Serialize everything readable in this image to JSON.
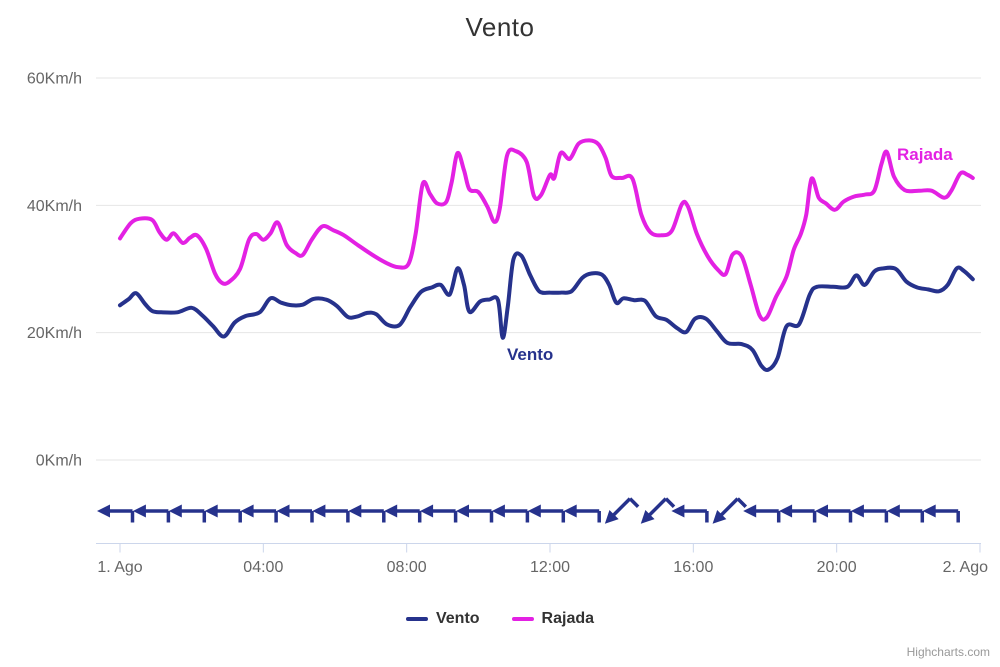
{
  "title": "Vento",
  "credit": "Highcharts.com",
  "series_labels": {
    "vento": "Vento",
    "rajada": "Rajada"
  },
  "legend": {
    "items": [
      {
        "label": "Vento",
        "color": "#26328c"
      },
      {
        "label": "Rajada",
        "color": "#e321e3"
      }
    ]
  },
  "colors": {
    "vento": "#26328c",
    "rajada": "#e321e3",
    "grid": "#e6e6e6",
    "axis_line": "#ccd6eb",
    "tick": "#ccd6eb",
    "axis_text": "#666666",
    "title_text": "#333333",
    "legend_text": "#333333",
    "credit_text": "#999999",
    "arrow": "#26328c"
  },
  "chart_data": {
    "type": "line",
    "title": "Vento",
    "subtitle": "",
    "x_unit": "hours since 1. Ago 00:00",
    "x_range_hours": [
      0,
      24
    ],
    "grid": "horizontal",
    "legend_position": "bottom-center",
    "x_ticks": [
      {
        "hour": 0,
        "label": "1. Ago"
      },
      {
        "hour": 4,
        "label": "04:00"
      },
      {
        "hour": 8,
        "label": "08:00"
      },
      {
        "hour": 12,
        "label": "12:00"
      },
      {
        "hour": 16,
        "label": "16:00"
      },
      {
        "hour": 20,
        "label": "20:00"
      },
      {
        "hour": 24,
        "label": "2. Ago"
      }
    ],
    "y_ticks": [
      {
        "value": 0,
        "label": "0Km/h"
      },
      {
        "value": 20,
        "label": "20Km/h"
      },
      {
        "value": 40,
        "label": "40Km/h"
      },
      {
        "value": 60,
        "label": "60Km/h"
      }
    ],
    "ylim": [
      0,
      60
    ],
    "y_unit": "Km/h",
    "series": [
      {
        "name": "Vento",
        "color": "#26328c",
        "points": [
          [
            0,
            24.3
          ],
          [
            0.25,
            25.3
          ],
          [
            0.45,
            26.2
          ],
          [
            0.7,
            24.5
          ],
          [
            0.9,
            23.4
          ],
          [
            1.15,
            23.2
          ],
          [
            1.6,
            23.2
          ],
          [
            2,
            23.9
          ],
          [
            2.3,
            22.7
          ],
          [
            2.6,
            21
          ],
          [
            2.9,
            19.4
          ],
          [
            3.2,
            21.6
          ],
          [
            3.5,
            22.6
          ],
          [
            3.9,
            23.2
          ],
          [
            4.2,
            25.4
          ],
          [
            4.5,
            24.7
          ],
          [
            4.8,
            24.3
          ],
          [
            5.1,
            24.4
          ],
          [
            5.4,
            25.3
          ],
          [
            5.75,
            25.2
          ],
          [
            6.05,
            24.2
          ],
          [
            6.35,
            22.5
          ],
          [
            6.6,
            22.5
          ],
          [
            6.9,
            23.1
          ],
          [
            7.15,
            22.9
          ],
          [
            7.45,
            21.3
          ],
          [
            7.8,
            21.2
          ],
          [
            8.1,
            24
          ],
          [
            8.4,
            26.4
          ],
          [
            8.7,
            27.1
          ],
          [
            8.95,
            27.5
          ],
          [
            9.2,
            26
          ],
          [
            9.42,
            30.1
          ],
          [
            9.6,
            27.5
          ],
          [
            9.75,
            23.3
          ],
          [
            10.05,
            24.9
          ],
          [
            10.3,
            25.2
          ],
          [
            10.55,
            25.1
          ],
          [
            10.68,
            19.2
          ],
          [
            10.82,
            24
          ],
          [
            10.98,
            31.5
          ],
          [
            11.2,
            32.1
          ],
          [
            11.45,
            29
          ],
          [
            11.7,
            26.5
          ],
          [
            12,
            26.3
          ],
          [
            12.3,
            26.3
          ],
          [
            12.6,
            26.5
          ],
          [
            12.9,
            28.6
          ],
          [
            13.15,
            29.3
          ],
          [
            13.45,
            29.1
          ],
          [
            13.65,
            27.5
          ],
          [
            13.85,
            24.7
          ],
          [
            14.05,
            25.4
          ],
          [
            14.35,
            25.1
          ],
          [
            14.65,
            25
          ],
          [
            14.95,
            22.6
          ],
          [
            15.25,
            22
          ],
          [
            15.55,
            20.7
          ],
          [
            15.8,
            20.1
          ],
          [
            16.05,
            22.2
          ],
          [
            16.35,
            22.2
          ],
          [
            16.65,
            20.3
          ],
          [
            16.95,
            18.4
          ],
          [
            17.35,
            18.2
          ],
          [
            17.65,
            17.3
          ],
          [
            17.9,
            14.8
          ],
          [
            18.1,
            14.2
          ],
          [
            18.35,
            16
          ],
          [
            18.6,
            21
          ],
          [
            18.95,
            21.3
          ],
          [
            19.25,
            26
          ],
          [
            19.45,
            27.2
          ],
          [
            19.9,
            27.2
          ],
          [
            20.3,
            27.2
          ],
          [
            20.55,
            29
          ],
          [
            20.78,
            27.5
          ],
          [
            21.05,
            29.6
          ],
          [
            21.3,
            30.1
          ],
          [
            21.65,
            30
          ],
          [
            21.95,
            28
          ],
          [
            22.25,
            27.1
          ],
          [
            22.55,
            26.8
          ],
          [
            22.85,
            26.5
          ],
          [
            23.1,
            27.5
          ],
          [
            23.35,
            30.1
          ],
          [
            23.55,
            29.7
          ],
          [
            23.8,
            28.4
          ]
        ]
      },
      {
        "name": "Rajada",
        "color": "#e321e3",
        "points": [
          [
            0,
            34.8
          ],
          [
            0.3,
            37.2
          ],
          [
            0.55,
            37.9
          ],
          [
            0.9,
            37.7
          ],
          [
            1.1,
            35.8
          ],
          [
            1.3,
            34.6
          ],
          [
            1.5,
            35.6
          ],
          [
            1.75,
            34.1
          ],
          [
            1.95,
            34.9
          ],
          [
            2.15,
            35.3
          ],
          [
            2.4,
            33.2
          ],
          [
            2.65,
            29.3
          ],
          [
            2.85,
            27.8
          ],
          [
            3.05,
            28
          ],
          [
            3.35,
            30
          ],
          [
            3.6,
            34.6
          ],
          [
            3.8,
            35.5
          ],
          [
            4,
            34.6
          ],
          [
            4.2,
            35.6
          ],
          [
            4.4,
            37.3
          ],
          [
            4.65,
            33.8
          ],
          [
            4.9,
            32.5
          ],
          [
            5.1,
            32.2
          ],
          [
            5.35,
            34.6
          ],
          [
            5.65,
            36.7
          ],
          [
            5.95,
            36.1
          ],
          [
            6.25,
            35.3
          ],
          [
            6.65,
            33.7
          ],
          [
            7.05,
            32.2
          ],
          [
            7.45,
            30.9
          ],
          [
            7.75,
            30.3
          ],
          [
            8.05,
            30.8
          ],
          [
            8.25,
            35.5
          ],
          [
            8.45,
            43.4
          ],
          [
            8.65,
            41.8
          ],
          [
            8.85,
            40.3
          ],
          [
            9.1,
            40.5
          ],
          [
            9.25,
            43.5
          ],
          [
            9.42,
            48.2
          ],
          [
            9.6,
            45.5
          ],
          [
            9.75,
            42.5
          ],
          [
            10,
            42.1
          ],
          [
            10.25,
            39.8
          ],
          [
            10.45,
            37.4
          ],
          [
            10.6,
            39.5
          ],
          [
            10.8,
            47.8
          ],
          [
            11.05,
            48.5
          ],
          [
            11.35,
            46.8
          ],
          [
            11.55,
            41.5
          ],
          [
            11.75,
            41.6
          ],
          [
            12,
            44.8
          ],
          [
            12.12,
            44.3
          ],
          [
            12.3,
            48.2
          ],
          [
            12.55,
            47.3
          ],
          [
            12.8,
            49.7
          ],
          [
            13.1,
            50.2
          ],
          [
            13.35,
            49.6
          ],
          [
            13.55,
            47.5
          ],
          [
            13.72,
            44.6
          ],
          [
            14,
            44.3
          ],
          [
            14.3,
            44.2
          ],
          [
            14.55,
            38.5
          ],
          [
            14.8,
            35.8
          ],
          [
            15.1,
            35.3
          ],
          [
            15.4,
            36
          ],
          [
            15.68,
            40.2
          ],
          [
            15.85,
            39.8
          ],
          [
            16.1,
            35.5
          ],
          [
            16.4,
            32
          ],
          [
            16.7,
            29.8
          ],
          [
            16.9,
            29.2
          ],
          [
            17.1,
            32.3
          ],
          [
            17.35,
            32
          ],
          [
            17.6,
            27.5
          ],
          [
            17.85,
            22.7
          ],
          [
            18.05,
            22.4
          ],
          [
            18.3,
            25.5
          ],
          [
            18.6,
            28.8
          ],
          [
            18.8,
            33
          ],
          [
            19,
            35.5
          ],
          [
            19.15,
            38.5
          ],
          [
            19.3,
            44.2
          ],
          [
            19.5,
            41.2
          ],
          [
            19.7,
            40.3
          ],
          [
            19.95,
            39.3
          ],
          [
            20.2,
            40.6
          ],
          [
            20.5,
            41.4
          ],
          [
            20.8,
            41.7
          ],
          [
            21.05,
            42.3
          ],
          [
            21.25,
            46.5
          ],
          [
            21.4,
            48.4
          ],
          [
            21.6,
            44.5
          ],
          [
            21.9,
            42.4
          ],
          [
            22.3,
            42.3
          ],
          [
            22.65,
            42.3
          ],
          [
            23,
            41.2
          ],
          [
            23.2,
            42.3
          ],
          [
            23.45,
            45
          ],
          [
            23.65,
            44.8
          ],
          [
            23.8,
            44.3
          ]
        ]
      }
    ],
    "wind_arrows": {
      "description": "hourly wind-direction arrows drawn below the 0Km/h line",
      "directions": [
        "left",
        "left",
        "left",
        "left",
        "left",
        "left",
        "left",
        "left",
        "left",
        "left",
        "left",
        "left",
        "left",
        "left",
        "down-left",
        "down-left",
        "left",
        "down-left",
        "left",
        "left",
        "left",
        "left",
        "left",
        "left"
      ]
    }
  }
}
